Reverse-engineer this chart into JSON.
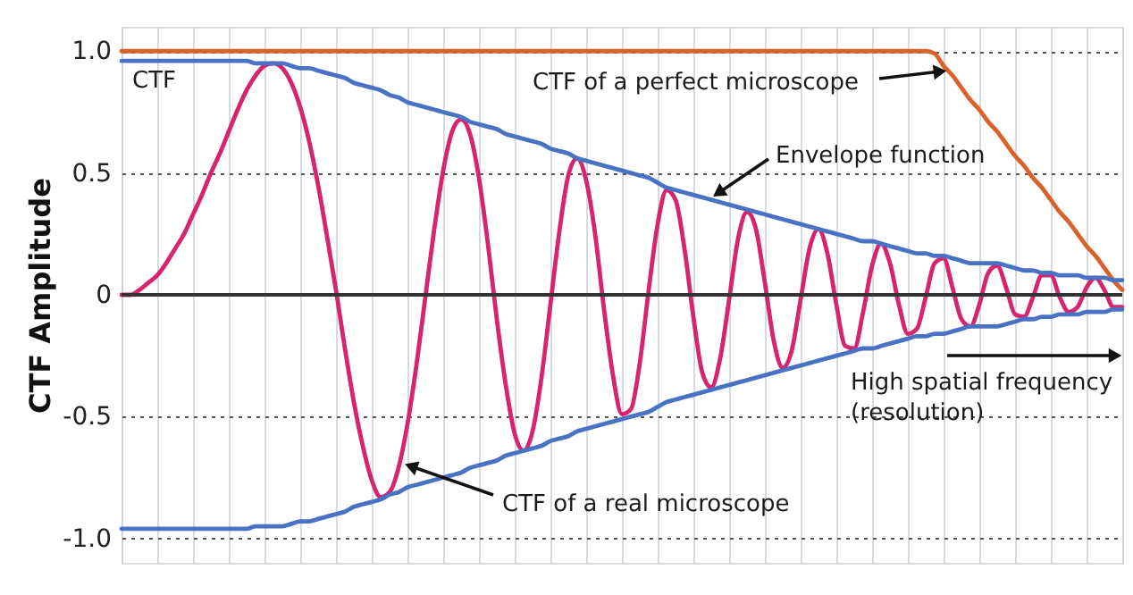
{
  "chart_data": {
    "type": "line",
    "ylabel": "CTF Amplitude",
    "categories": [
      null,
      null,
      null,
      null,
      null,
      null,
      null,
      null,
      null,
      null,
      null,
      null,
      null,
      null,
      null,
      null,
      null,
      null,
      null,
      null,
      null,
      null,
      null,
      null,
      null,
      null,
      null,
      null,
      null,
      null,
      null,
      null,
      null,
      null,
      null,
      null,
      null,
      null,
      null,
      null,
      null,
      null,
      null,
      null,
      null,
      null,
      null,
      null,
      null,
      null,
      null,
      null,
      null,
      null,
      null,
      null,
      null,
      null,
      null,
      null,
      null,
      null,
      null,
      null,
      null,
      null,
      null,
      null,
      null,
      null,
      null,
      null,
      null,
      null,
      null,
      null,
      null,
      null,
      null,
      null,
      null,
      null,
      null,
      null,
      null,
      null,
      null,
      null,
      null,
      null,
      null,
      null,
      null,
      null,
      null,
      null,
      null,
      null,
      null,
      null,
      null,
      null,
      null,
      null,
      null,
      null,
      null,
      null,
      null,
      null,
      null,
      null,
      null
    ],
    "series": [
      {
        "color": "#d9622b",
        "values": [
          1,
          1,
          1,
          1,
          1,
          1,
          1,
          1,
          1,
          1,
          1,
          1,
          1,
          1,
          1,
          1,
          1,
          1,
          1,
          1,
          1,
          1,
          1,
          1,
          1,
          1,
          1,
          1,
          1,
          1,
          1,
          1,
          1,
          1,
          1,
          1,
          1,
          1,
          1,
          1,
          1,
          1,
          1,
          1,
          1,
          1,
          1,
          1,
          1,
          1,
          1,
          1,
          1,
          1,
          1,
          1,
          1,
          1,
          1,
          1,
          1,
          1,
          1,
          1,
          1,
          1,
          1,
          1,
          1,
          1,
          1,
          1,
          1,
          1,
          1,
          1,
          1,
          1,
          1,
          1,
          1,
          1,
          1,
          1,
          1,
          1,
          1,
          1,
          1,
          1,
          1,
          0.99,
          0.94,
          0.9,
          0.85,
          0.8,
          0.76,
          0.71,
          0.67,
          0.62,
          0.57,
          0.53,
          0.48,
          0.44,
          0.39,
          0.34,
          0.3,
          0.25,
          0.2,
          0.16,
          0.11,
          0.06,
          0.02
        ]
      },
      {
        "color": "#d6246e",
        "values": [
          0,
          0,
          0.02,
          0.05,
          0.08,
          0.13,
          0.19,
          0.25,
          0.33,
          0.41,
          0.5,
          0.58,
          0.67,
          0.76,
          0.84,
          0.9,
          0.94,
          0.95,
          0.93,
          0.87,
          0.77,
          0.63,
          0.45,
          0.24,
          0.02,
          -0.22,
          -0.44,
          -0.62,
          -0.76,
          -0.83,
          -0.81,
          -0.71,
          -0.53,
          -0.29,
          -0.01,
          0.27,
          0.51,
          0.67,
          0.72,
          0.66,
          0.48,
          0.21,
          -0.1,
          -0.37,
          -0.57,
          -0.64,
          -0.56,
          -0.34,
          -0.04,
          0.26,
          0.49,
          0.56,
          0.47,
          0.25,
          -0.06,
          -0.33,
          -0.49,
          -0.47,
          -0.28,
          0.02,
          0.29,
          0.43,
          0.39,
          0.19,
          -0.09,
          -0.32,
          -0.38,
          -0.26,
          -0.02,
          0.23,
          0.34,
          0.27,
          0.05,
          -0.19,
          -0.3,
          -0.23,
          -0.02,
          0.19,
          0.27,
          0.17,
          -0.04,
          -0.21,
          -0.22,
          -0.07,
          0.12,
          0.21,
          0.13,
          -0.04,
          -0.16,
          -0.14,
          -0.01,
          0.13,
          0.15,
          0.03,
          -0.1,
          -0.13,
          -0.04,
          0.09,
          0.12,
          0.03,
          -0.08,
          -0.09,
          -0.01,
          0.08,
          0.08,
          -0.01,
          -0.07,
          -0.05,
          0.03,
          0.07,
          0.02,
          -0.05,
          -0.05
        ]
      },
      {
        "color": "#4a72c4",
        "values": [
          0.96,
          0.96,
          0.96,
          0.96,
          0.96,
          0.96,
          0.96,
          0.96,
          0.96,
          0.96,
          0.96,
          0.96,
          0.96,
          0.96,
          0.96,
          0.95,
          0.95,
          0.95,
          0.95,
          0.94,
          0.93,
          0.93,
          0.92,
          0.91,
          0.9,
          0.89,
          0.87,
          0.86,
          0.85,
          0.84,
          0.82,
          0.81,
          0.79,
          0.78,
          0.77,
          0.76,
          0.75,
          0.74,
          0.73,
          0.71,
          0.7,
          0.69,
          0.68,
          0.66,
          0.65,
          0.64,
          0.63,
          0.62,
          0.6,
          0.59,
          0.58,
          0.56,
          0.55,
          0.54,
          0.53,
          0.52,
          0.51,
          0.5,
          0.49,
          0.48,
          0.46,
          0.44,
          0.43,
          0.42,
          0.41,
          0.4,
          0.39,
          0.38,
          0.37,
          0.36,
          0.35,
          0.34,
          0.33,
          0.32,
          0.31,
          0.3,
          0.29,
          0.28,
          0.27,
          0.26,
          0.25,
          0.24,
          0.23,
          0.22,
          0.22,
          0.21,
          0.2,
          0.19,
          0.18,
          0.17,
          0.17,
          0.16,
          0.16,
          0.15,
          0.14,
          0.13,
          0.13,
          0.13,
          0.13,
          0.12,
          0.11,
          0.1,
          0.1,
          0.09,
          0.09,
          0.08,
          0.08,
          0.08,
          0.07,
          0.07,
          0.07,
          0.06,
          0.06
        ]
      },
      {
        "color": "#4a72c4",
        "values": [
          -0.96,
          -0.96,
          -0.96,
          -0.96,
          -0.96,
          -0.96,
          -0.96,
          -0.96,
          -0.96,
          -0.96,
          -0.96,
          -0.96,
          -0.96,
          -0.96,
          -0.96,
          -0.95,
          -0.95,
          -0.95,
          -0.95,
          -0.94,
          -0.93,
          -0.93,
          -0.92,
          -0.91,
          -0.9,
          -0.89,
          -0.87,
          -0.86,
          -0.85,
          -0.84,
          -0.82,
          -0.81,
          -0.79,
          -0.78,
          -0.77,
          -0.76,
          -0.75,
          -0.74,
          -0.73,
          -0.71,
          -0.7,
          -0.69,
          -0.68,
          -0.66,
          -0.65,
          -0.64,
          -0.63,
          -0.62,
          -0.6,
          -0.59,
          -0.58,
          -0.56,
          -0.55,
          -0.54,
          -0.53,
          -0.52,
          -0.51,
          -0.5,
          -0.49,
          -0.48,
          -0.46,
          -0.44,
          -0.43,
          -0.42,
          -0.41,
          -0.4,
          -0.39,
          -0.38,
          -0.37,
          -0.36,
          -0.35,
          -0.34,
          -0.33,
          -0.32,
          -0.31,
          -0.3,
          -0.29,
          -0.28,
          -0.27,
          -0.26,
          -0.25,
          -0.24,
          -0.23,
          -0.22,
          -0.22,
          -0.21,
          -0.2,
          -0.19,
          -0.18,
          -0.17,
          -0.17,
          -0.16,
          -0.16,
          -0.15,
          -0.14,
          -0.13,
          -0.13,
          -0.13,
          -0.13,
          -0.12,
          -0.11,
          -0.1,
          -0.1,
          -0.09,
          -0.09,
          -0.08,
          -0.08,
          -0.08,
          -0.07,
          -0.07,
          -0.07,
          -0.06,
          -0.06
        ]
      }
    ],
    "ylim": [
      -1.1,
      1.1
    ],
    "yticks": [
      {
        "value": -1,
        "label": "-1.0"
      },
      -0.5,
      0,
      0.5,
      {
        "value": 1,
        "label": "1.0"
      }
    ],
    "grid": true,
    "tick_labels": "y",
    "marker": "none",
    "line_style": "solid",
    "ref_lines": [
      {
        "axis": "y",
        "value": 0,
        "color": "#333333"
      }
    ],
    "annotations": [
      "CTF",
      "CTF of a perfect microscope",
      "Envelope function",
      "CTF of a real microscope",
      "High spatial frequency\n(resolution)"
    ]
  }
}
